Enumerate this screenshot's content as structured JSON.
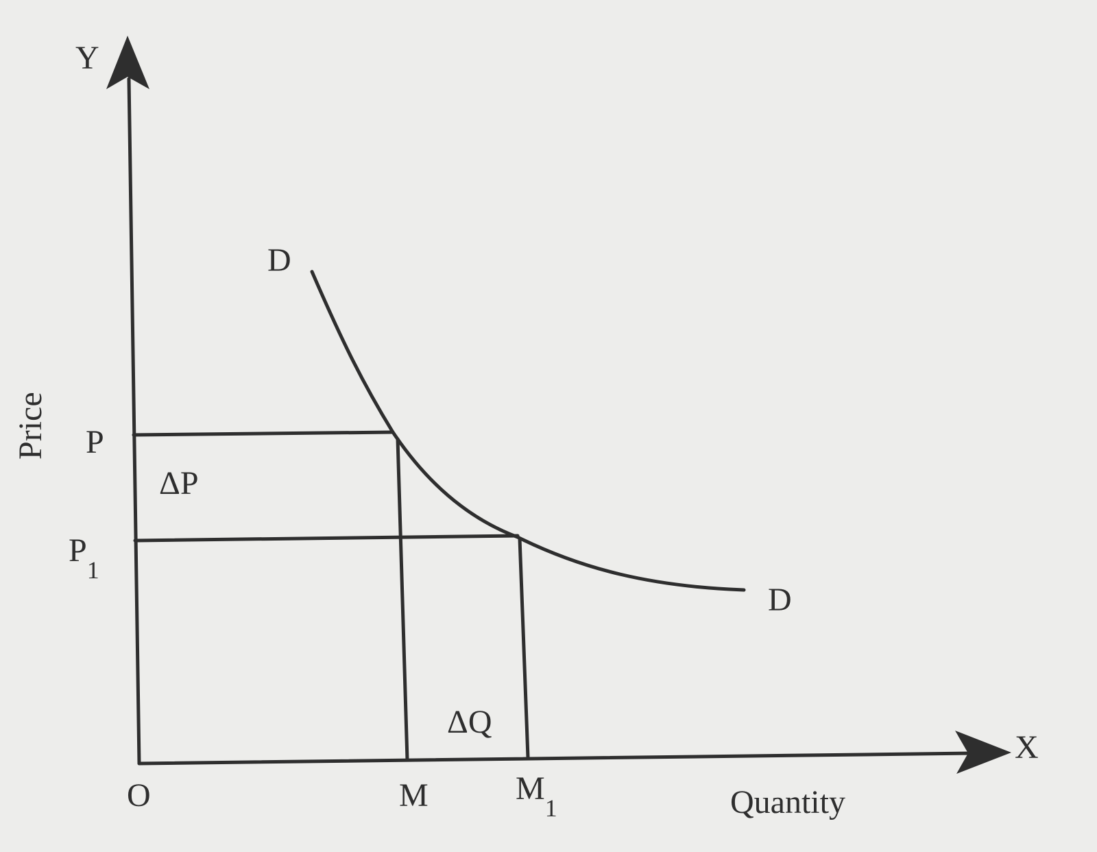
{
  "axes": {
    "y_symbol": "Y",
    "x_symbol": "X",
    "y_label": "Price",
    "x_label": "Quantity",
    "origin": "O"
  },
  "curve": {
    "start_label": "D",
    "end_label": "D"
  },
  "price_levels": [
    {
      "label": "P"
    },
    {
      "label": "P",
      "subscript": "1"
    }
  ],
  "quantity_levels": [
    {
      "label": "M"
    },
    {
      "label": "M",
      "subscript": "1"
    }
  ],
  "changes": {
    "price": "ΔP",
    "quantity": "ΔQ"
  }
}
